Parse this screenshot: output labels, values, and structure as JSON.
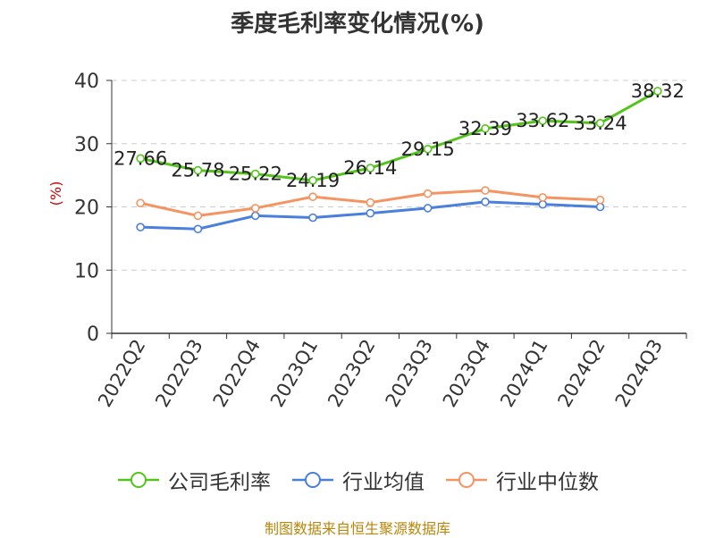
{
  "chart_data": {
    "type": "line",
    "title": "季度毛利率变化情况(%)",
    "ylabel": "(%)",
    "xlabel": "",
    "ylim": [
      0,
      40
    ],
    "yticks": [
      0,
      10,
      20,
      30,
      40
    ],
    "grid": "horizontal dashed",
    "categories": [
      "2022Q2",
      "2022Q3",
      "2022Q4",
      "2023Q1",
      "2023Q2",
      "2023Q3",
      "2023Q4",
      "2024Q1",
      "2024Q2",
      "2024Q3"
    ],
    "series": [
      {
        "name": "公司毛利率",
        "color": "#52c41a",
        "values": [
          27.66,
          25.78,
          25.22,
          24.19,
          26.14,
          29.15,
          32.39,
          33.62,
          33.24,
          38.32
        ],
        "labels": [
          "27.66",
          "25.78",
          "25.22",
          "24.19",
          "26.14",
          "29.15",
          "32.39",
          "33.62",
          "33.24",
          "38.32"
        ]
      },
      {
        "name": "行业均值",
        "color": "#4a7fdc",
        "values": [
          16.8,
          16.5,
          18.6,
          18.3,
          19.0,
          19.8,
          20.8,
          20.4,
          20.0,
          null
        ]
      },
      {
        "name": "行业中位数",
        "color": "#f59361",
        "values": [
          20.6,
          18.6,
          19.8,
          21.6,
          20.7,
          22.1,
          22.6,
          21.5,
          21.1,
          null
        ]
      }
    ],
    "legend_position": "bottom"
  },
  "source_note": "制图数据来自恒生聚源数据库"
}
